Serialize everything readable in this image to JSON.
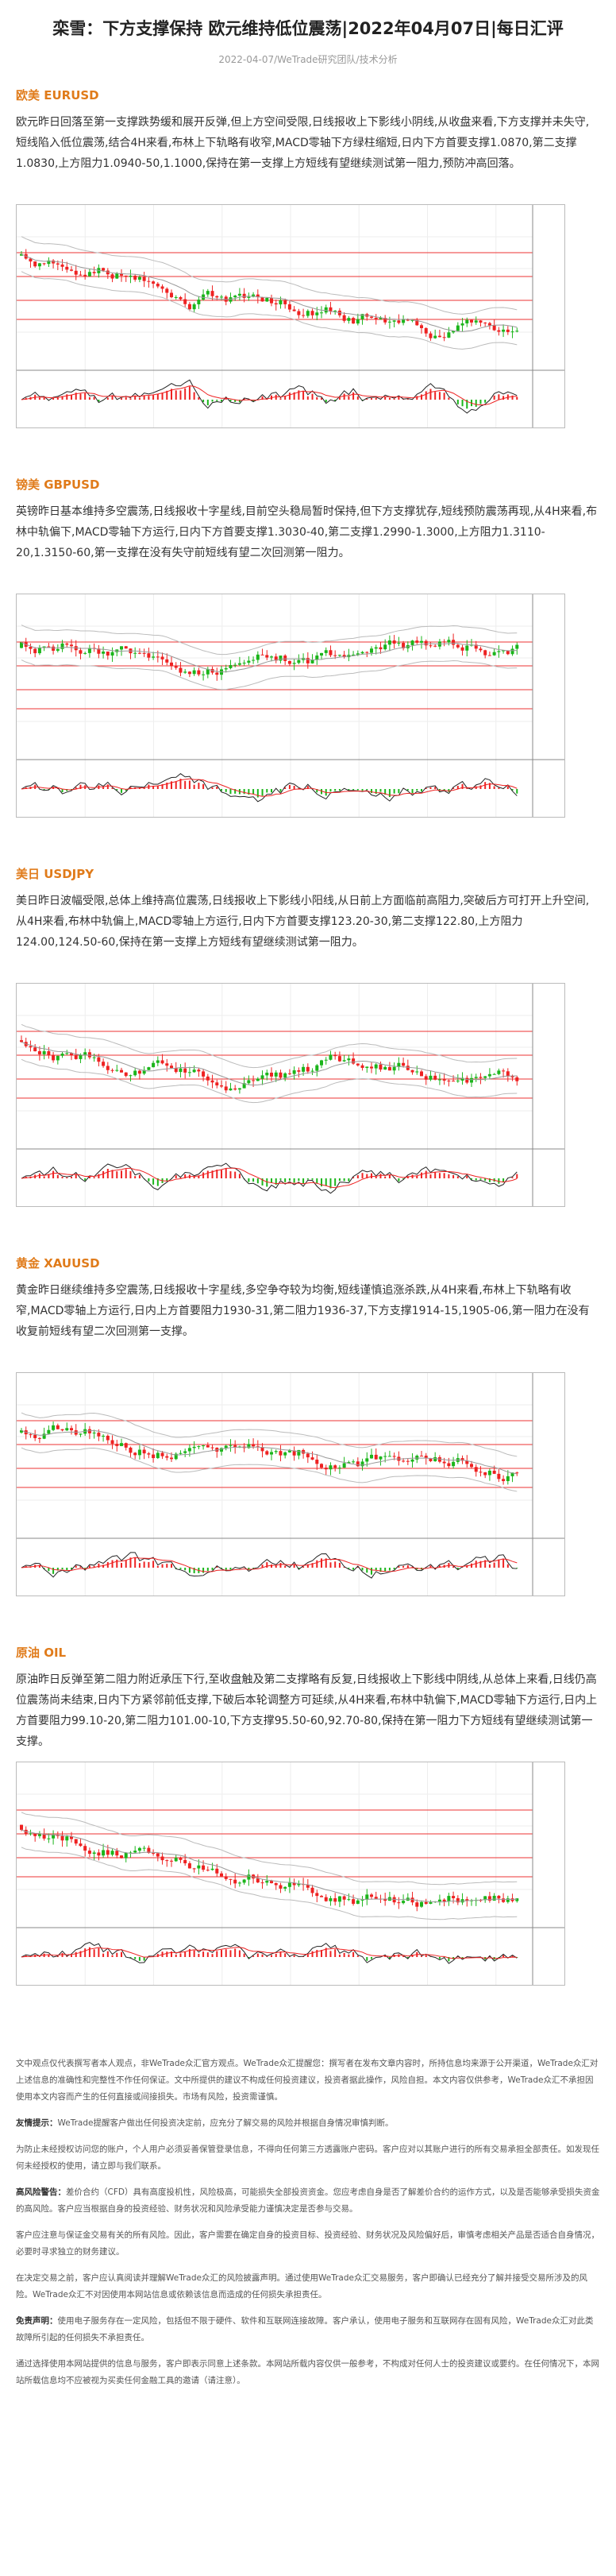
{
  "header": {
    "title": "栾雪：下方支撑保持 欧元维持低位震荡|2022年04月07日|每日汇评",
    "meta": "2022-04-07/WeTrade研究团队/技术分析"
  },
  "sections": [
    {
      "heading": "欧美 EURUSD",
      "body": "欧元昨日回落至第一支撑跌势缓和展开反弹,但上方空间受限,日线报收上下影线小阴线,从收盘来看,下方支撑并未失守,短线陷入低位震荡,结合4H来看,布林上下轨略有收窄,MACD零轴下方绿柱缩短,日内下方首要支撑1.0870,第二支撑1.0830,上方阻力1.0940-50,1.1000,保持在第一支撑上方短线有望继续测试第一阻力,预防冲高回落。"
    },
    {
      "heading": "镑美 GBPUSD",
      "body": "英镑昨日基本维持多空震荡,日线报收十字星线,目前空头稳局暂时保持,但下方支撑犹存,短线预防震荡再现,从4H来看,布林中轨偏下,MACD零轴下方运行,日内下方首要支撑1.3030-40,第二支撑1.2990-1.3000,上方阻力1.3110-20,1.3150-60,第一支撑在没有失守前短线有望二次回测第一阻力。"
    },
    {
      "heading": "美日 USDJPY",
      "body": "美日昨日波幅受限,总体上维持高位震荡,日线报收上下影线小阳线,从日前上方面临前高阻力,突破后方可打开上升空间,从4H来看,布林中轨偏上,MACD零轴上方运行,日内下方首要支撑123.20-30,第二支撑122.80,上方阻力124.00,124.50-60,保持在第一支撑上方短线有望继续测试第一阻力。"
    },
    {
      "heading": "黄金 XAUUSD",
      "body": "黄金昨日继续维持多空震荡,日线报收十字星线,多空争夺较为均衡,短线谨慎追涨杀跌,从4H来看,布林上下轨略有收窄,MACD零轴上方运行,日内上方首要阻力1930-31,第二阻力1936-37,下方支撑1914-15,1905-06,第一阻力在没有收复前短线有望二次回测第一支撑。"
    },
    {
      "heading": "原油 OIL",
      "body": "原油昨日反弹至第二阻力附近承压下行,至收盘触及第二支撑略有反复,日线报收上下影线中阴线,从总体上来看,日线仍高位震荡尚未结束,日内下方紧邻前低支撑,下破后本轮调整方可延续,从4H来看,布林中轨偏下,MACD零轴下方运行,日内上方首要阻力99.10-20,第二阻力101.00-10,下方支撑95.50-60,92.70-80,保持在第一阻力下方短线有望继续测试第一支撑。"
    }
  ],
  "disclaimer": [
    {
      "text": "文中观点仅代表撰写者本人观点，非WeTrade众汇官方观点。WeTrade众汇提醒您：撰写者在发布文章内容时，所持信息均来源于公开渠道，WeTrade众汇对上述信息的准确性和完整性不作任何保证。文中所提供的建议不构成任何投资建议，投资者据此操作，风险自担。本文内容仅供参考，WeTrade众汇不承担因使用本文内容而产生的任何直接或间接损失。市场有风险，投资需谨慎。"
    },
    {
      "lead": "友情提示：",
      "text": "WeTrade提醒客户做出任何投资决定前，应充分了解交易的风险并根据自身情况审慎判断。"
    },
    {
      "text": "为防止未经授权访问您的账户，个人用户必须妥善保管登录信息，不得向任何第三方透露账户密码。客户应对以其账户进行的所有交易承担全部责任。如发现任何未经授权的使用，请立即与我们联系。"
    },
    {
      "lead": "高风险警告：",
      "text": "差价合约（CFD）具有高度投机性，风险极高，可能损失全部投资资金。您应考虑自身是否了解差价合约的运作方式，以及是否能够承受损失资金的高风险。客户应当根据自身的投资经验、财务状况和风险承受能力谨慎决定是否参与交易。"
    },
    {
      "text": "客户应注意与保证金交易有关的所有风险。因此，客户需要在确定自身的投资目标、投资经验、财务状况及风险偏好后，审慎考虑相关产品是否适合自身情况，必要时寻求独立的财务建议。"
    },
    {
      "text": "在决定交易之前，客户应认真阅读并理解WeTrade众汇的风险披露声明。通过使用WeTrade众汇交易服务，客户即确认已经充分了解并接受交易所涉及的风险。WeTrade众汇不对因使用本网站信息或依赖该信息而造成的任何损失承担责任。"
    },
    {
      "lead": "免责声明：",
      "text": "使用电子服务存在一定风险，包括但不限于硬件、软件和互联网连接故障。客户承认，使用电子服务和互联网存在固有风险，WeTrade众汇对此类故障所引起的任何损失不承担责任。"
    },
    {
      "text": "通过选择使用本网站提供的信息与服务，客户即表示同意上述条款。本网站所载内容仅供一般参考，不构成对任何人士的投资建议或要约。在任何情况下，本网站所载信息均不应被视为买卖任何金融工具的邀请（请注意）。"
    }
  ]
}
